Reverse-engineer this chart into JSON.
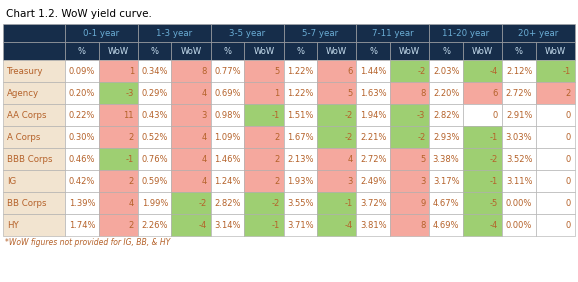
{
  "title": "Chart 1.2. WoW yield curve.",
  "footnote": "*WoW figures not provided for IG, BB, & HY",
  "col_groups": [
    "0-1 year",
    "1-3 year",
    "3-5 year",
    "5-7 year",
    "7-11 year",
    "11-20 year",
    "20+ year"
  ],
  "row_labels": [
    "Treasury",
    "Agency",
    "AA Corps",
    "A Corps",
    "BBB Corps",
    "IG",
    "BB Corps",
    "HY"
  ],
  "data": [
    [
      "0.09%",
      1,
      "0.34%",
      8,
      "0.77%",
      5,
      "1.22%",
      6,
      "1.44%",
      -2,
      "2.03%",
      -4,
      "2.12%",
      -1
    ],
    [
      "0.20%",
      -3,
      "0.29%",
      4,
      "0.69%",
      1,
      "1.22%",
      5,
      "1.63%",
      8,
      "2.20%",
      6,
      "2.72%",
      2
    ],
    [
      "0.22%",
      11,
      "0.43%",
      3,
      "0.98%",
      -1,
      "1.51%",
      -2,
      "1.94%",
      -3,
      "2.82%",
      0,
      "2.91%",
      0
    ],
    [
      "0.30%",
      2,
      "0.52%",
      4,
      "1.09%",
      2,
      "1.67%",
      -2,
      "2.21%",
      -2,
      "2.93%",
      -1,
      "3.03%",
      0
    ],
    [
      "0.46%",
      -1,
      "0.76%",
      4,
      "1.46%",
      2,
      "2.13%",
      4,
      "2.72%",
      5,
      "3.38%",
      -2,
      "3.52%",
      0
    ],
    [
      "0.42%",
      2,
      "0.59%",
      4,
      "1.24%",
      2,
      "1.93%",
      3,
      "2.49%",
      3,
      "3.17%",
      -1,
      "3.11%",
      0
    ],
    [
      "1.39%",
      4,
      "1.99%",
      -2,
      "2.82%",
      -2,
      "3.55%",
      -1,
      "3.72%",
      9,
      "4.67%",
      -5,
      "0.00%",
      0
    ],
    [
      "1.74%",
      2,
      "2.26%",
      -4,
      "3.14%",
      -1,
      "3.71%",
      -4,
      "3.81%",
      8,
      "4.69%",
      -4,
      "0.00%",
      0
    ]
  ],
  "header_bg": "#162d4a",
  "header_text_group": "#6baed6",
  "header_text_sub": "#c8dff0",
  "row_label_bg": "#f2e4d0",
  "row_label_text": "#b5622a",
  "cell_bg_white": "#ffffff",
  "cell_bg_pos": "#f5a89e",
  "cell_bg_neg": "#9ecf72",
  "cell_bg_zero": "#ffffff",
  "grid_color": "#aaaaaa",
  "pct_text_color": "#b5622a",
  "wow_text_color": "#b5622a",
  "title_color": "#000000",
  "footnote_color": "#b5622a",
  "title_fontsize": 7.5,
  "header_group_fontsize": 6.2,
  "header_sub_fontsize": 6.0,
  "data_fontsize": 6.0,
  "label_fontsize": 6.2,
  "footnote_fontsize": 5.5
}
